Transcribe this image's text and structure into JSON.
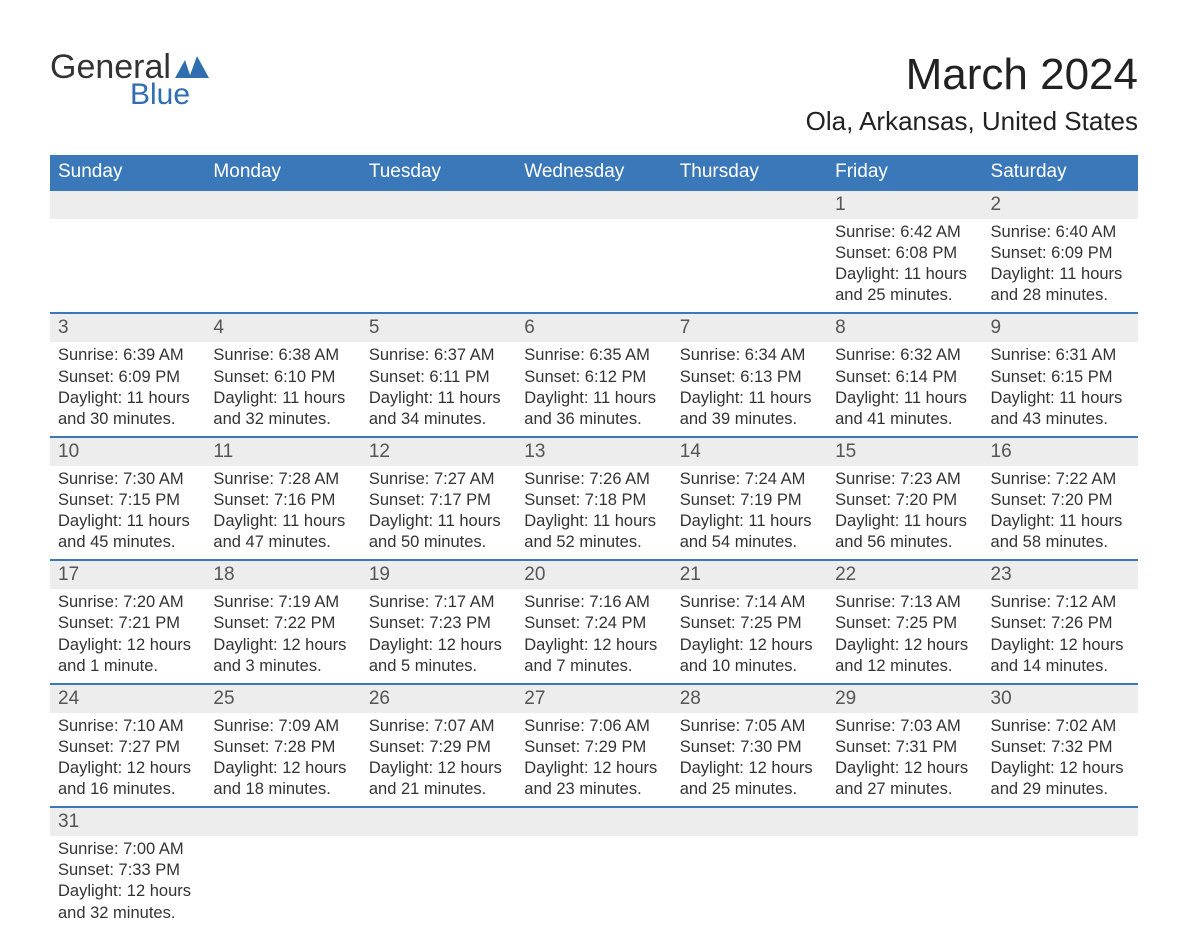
{
  "logo": {
    "word1": "General",
    "word2": "Blue"
  },
  "title": "March 2024",
  "location": "Ola, Arkansas, United States",
  "colors": {
    "header_bg": "#3b78b9",
    "header_text": "#ffffff",
    "daynum_bg": "#ededed",
    "border": "#3b78b9",
    "body_text": "#333333",
    "logo_accent": "#2f6eaf"
  },
  "fonts": {
    "title_pt": 44,
    "location_pt": 26,
    "header_pt": 19,
    "daynum_pt": 19,
    "body_pt": 16.5
  },
  "daysOfWeek": [
    "Sunday",
    "Monday",
    "Tuesday",
    "Wednesday",
    "Thursday",
    "Friday",
    "Saturday"
  ],
  "startOffset": 5,
  "days": [
    {
      "n": 1,
      "sunrise": "6:42 AM",
      "sunset": "6:08 PM",
      "daylight": "11 hours and 25 minutes."
    },
    {
      "n": 2,
      "sunrise": "6:40 AM",
      "sunset": "6:09 PM",
      "daylight": "11 hours and 28 minutes."
    },
    {
      "n": 3,
      "sunrise": "6:39 AM",
      "sunset": "6:09 PM",
      "daylight": "11 hours and 30 minutes."
    },
    {
      "n": 4,
      "sunrise": "6:38 AM",
      "sunset": "6:10 PM",
      "daylight": "11 hours and 32 minutes."
    },
    {
      "n": 5,
      "sunrise": "6:37 AM",
      "sunset": "6:11 PM",
      "daylight": "11 hours and 34 minutes."
    },
    {
      "n": 6,
      "sunrise": "6:35 AM",
      "sunset": "6:12 PM",
      "daylight": "11 hours and 36 minutes."
    },
    {
      "n": 7,
      "sunrise": "6:34 AM",
      "sunset": "6:13 PM",
      "daylight": "11 hours and 39 minutes."
    },
    {
      "n": 8,
      "sunrise": "6:32 AM",
      "sunset": "6:14 PM",
      "daylight": "11 hours and 41 minutes."
    },
    {
      "n": 9,
      "sunrise": "6:31 AM",
      "sunset": "6:15 PM",
      "daylight": "11 hours and 43 minutes."
    },
    {
      "n": 10,
      "sunrise": "7:30 AM",
      "sunset": "7:15 PM",
      "daylight": "11 hours and 45 minutes."
    },
    {
      "n": 11,
      "sunrise": "7:28 AM",
      "sunset": "7:16 PM",
      "daylight": "11 hours and 47 minutes."
    },
    {
      "n": 12,
      "sunrise": "7:27 AM",
      "sunset": "7:17 PM",
      "daylight": "11 hours and 50 minutes."
    },
    {
      "n": 13,
      "sunrise": "7:26 AM",
      "sunset": "7:18 PM",
      "daylight": "11 hours and 52 minutes."
    },
    {
      "n": 14,
      "sunrise": "7:24 AM",
      "sunset": "7:19 PM",
      "daylight": "11 hours and 54 minutes."
    },
    {
      "n": 15,
      "sunrise": "7:23 AM",
      "sunset": "7:20 PM",
      "daylight": "11 hours and 56 minutes."
    },
    {
      "n": 16,
      "sunrise": "7:22 AM",
      "sunset": "7:20 PM",
      "daylight": "11 hours and 58 minutes."
    },
    {
      "n": 17,
      "sunrise": "7:20 AM",
      "sunset": "7:21 PM",
      "daylight": "12 hours and 1 minute."
    },
    {
      "n": 18,
      "sunrise": "7:19 AM",
      "sunset": "7:22 PM",
      "daylight": "12 hours and 3 minutes."
    },
    {
      "n": 19,
      "sunrise": "7:17 AM",
      "sunset": "7:23 PM",
      "daylight": "12 hours and 5 minutes."
    },
    {
      "n": 20,
      "sunrise": "7:16 AM",
      "sunset": "7:24 PM",
      "daylight": "12 hours and 7 minutes."
    },
    {
      "n": 21,
      "sunrise": "7:14 AM",
      "sunset": "7:25 PM",
      "daylight": "12 hours and 10 minutes."
    },
    {
      "n": 22,
      "sunrise": "7:13 AM",
      "sunset": "7:25 PM",
      "daylight": "12 hours and 12 minutes."
    },
    {
      "n": 23,
      "sunrise": "7:12 AM",
      "sunset": "7:26 PM",
      "daylight": "12 hours and 14 minutes."
    },
    {
      "n": 24,
      "sunrise": "7:10 AM",
      "sunset": "7:27 PM",
      "daylight": "12 hours and 16 minutes."
    },
    {
      "n": 25,
      "sunrise": "7:09 AM",
      "sunset": "7:28 PM",
      "daylight": "12 hours and 18 minutes."
    },
    {
      "n": 26,
      "sunrise": "7:07 AM",
      "sunset": "7:29 PM",
      "daylight": "12 hours and 21 minutes."
    },
    {
      "n": 27,
      "sunrise": "7:06 AM",
      "sunset": "7:29 PM",
      "daylight": "12 hours and 23 minutes."
    },
    {
      "n": 28,
      "sunrise": "7:05 AM",
      "sunset": "7:30 PM",
      "daylight": "12 hours and 25 minutes."
    },
    {
      "n": 29,
      "sunrise": "7:03 AM",
      "sunset": "7:31 PM",
      "daylight": "12 hours and 27 minutes."
    },
    {
      "n": 30,
      "sunrise": "7:02 AM",
      "sunset": "7:32 PM",
      "daylight": "12 hours and 29 minutes."
    },
    {
      "n": 31,
      "sunrise": "7:00 AM",
      "sunset": "7:33 PM",
      "daylight": "12 hours and 32 minutes."
    }
  ],
  "labels": {
    "sunrise": "Sunrise:",
    "sunset": "Sunset:",
    "daylight": "Daylight:"
  }
}
